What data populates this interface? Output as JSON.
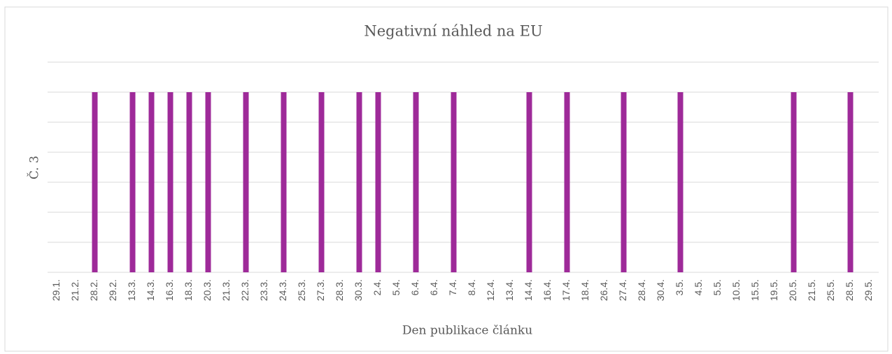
{
  "chart_data": {
    "type": "bar",
    "title": "Negativní náhled na EU",
    "x_label": "Den publikace článku",
    "y_label": "Č. 3",
    "categories": [
      "29.1.",
      "21.2.",
      "28.2.",
      "29.2.",
      "13.3.",
      "14.3.",
      "16.3.",
      "18.3.",
      "20.3.",
      "21.3.",
      "22.3.",
      "23.3.",
      "24.3.",
      "25.3.",
      "27.3.",
      "28.3.",
      "30.3.",
      "2.4.",
      "5.4.",
      "6.4.",
      "6.4.",
      "7.4.",
      "8.4.",
      "12.4.",
      "13.4.",
      "14.4.",
      "16.4.",
      "17.4.",
      "18.4.",
      "26.4.",
      "27.4.",
      "28.4.",
      "30.4.",
      "3.5.",
      "4.5.",
      "5.5.",
      "10.5.",
      "15.5.",
      "19.5.",
      "20.5.",
      "21.5.",
      "25.5.",
      "28.5.",
      "29.5."
    ],
    "values": [
      0,
      0,
      6,
      0,
      6,
      6,
      6,
      6,
      6,
      0,
      6,
      0,
      6,
      0,
      6,
      0,
      6,
      6,
      0,
      6,
      0,
      6,
      0,
      0,
      0,
      6,
      0,
      6,
      0,
      0,
      6,
      0,
      0,
      6,
      0,
      0,
      0,
      0,
      0,
      6,
      0,
      0,
      6,
      0
    ],
    "color": "#9e2a99",
    "ylim": [
      0,
      7
    ],
    "yticks": [
      0,
      1,
      2,
      3,
      4,
      5,
      6,
      7
    ],
    "grid": true,
    "ytick_labels": false
  }
}
